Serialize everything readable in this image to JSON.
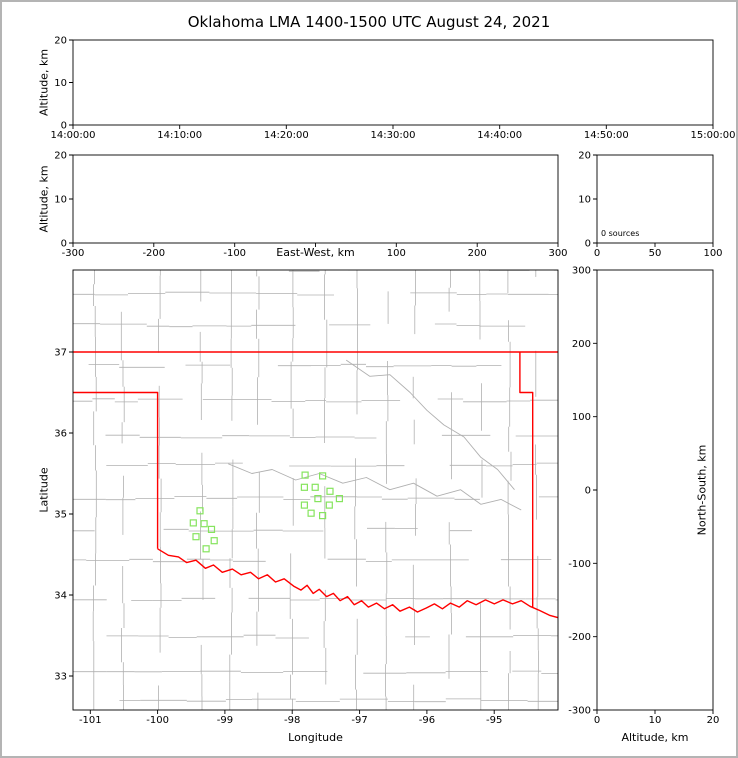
{
  "figure": {
    "title": "Oklahoma LMA 1400-1500 UTC August 24, 2021",
    "background": "#ffffff",
    "frame_color": "#b4b4b4"
  },
  "chart_data": [
    {
      "id": "time-height",
      "type": "scatter",
      "ylabel": "Altitude, km",
      "ylim": [
        0,
        20
      ],
      "yticks": [
        0,
        10,
        20
      ],
      "xticks": [
        "14:00:00",
        "14:10:00",
        "14:20:00",
        "14:30:00",
        "14:40:00",
        "14:50:00",
        "15:00:00"
      ],
      "points": []
    },
    {
      "id": "ew-height",
      "type": "scatter",
      "xlabel": "East-West, km",
      "ylabel": "Altitude, km",
      "xlim": [
        -300,
        300
      ],
      "ylim": [
        0,
        20
      ],
      "xticks": [
        -300,
        -200,
        -100,
        100,
        200,
        300
      ],
      "yticks": [
        0,
        10,
        20
      ],
      "points": []
    },
    {
      "id": "altitude-histogram",
      "type": "line",
      "annotation": "0 sources",
      "xlim": [
        0,
        100
      ],
      "ylim": [
        0,
        20
      ],
      "xticks": [
        0,
        50,
        100
      ],
      "yticks": [
        0,
        10,
        20
      ],
      "points": []
    },
    {
      "id": "plan-view-map",
      "type": "scatter",
      "xlabel": "Longitude",
      "ylabel": "Latitude",
      "xlim": [
        -101.26,
        -94.05
      ],
      "ylim": [
        32.58,
        38.01
      ],
      "xticks": [
        -101,
        -100,
        -99,
        -98,
        -97,
        -96,
        -95
      ],
      "yticks": [
        33,
        34,
        35,
        36,
        37
      ],
      "grid": false,
      "station_color": "#86e45e",
      "border_color": "#ff0000",
      "county_color": "#b0b0b0",
      "stations": [
        [
          -97.81,
          35.48
        ],
        [
          -97.55,
          35.47
        ],
        [
          -97.82,
          35.33
        ],
        [
          -97.66,
          35.33
        ],
        [
          -97.44,
          35.28
        ],
        [
          -97.62,
          35.19
        ],
        [
          -97.82,
          35.11
        ],
        [
          -97.45,
          35.11
        ],
        [
          -97.3,
          35.19
        ],
        [
          -97.72,
          35.01
        ],
        [
          -97.55,
          34.98
        ],
        [
          -99.37,
          35.04
        ],
        [
          -99.47,
          34.89
        ],
        [
          -99.31,
          34.88
        ],
        [
          -99.2,
          34.81
        ],
        [
          -99.43,
          34.72
        ],
        [
          -99.28,
          34.57
        ],
        [
          -99.16,
          34.67
        ]
      ],
      "state_border": [
        [
          [
            -101.26,
            37.0
          ],
          [
            -94.05,
            37.0
          ]
        ],
        [
          [
            -101.26,
            36.5
          ],
          [
            -100.0,
            36.5
          ],
          [
            -100.0,
            34.57
          ]
        ],
        [
          [
            -94.62,
            37.0
          ],
          [
            -94.62,
            36.5
          ],
          [
            -94.43,
            36.5
          ],
          [
            -94.43,
            33.84
          ]
        ],
        [
          [
            -100.0,
            34.57
          ],
          [
            -99.84,
            34.49
          ],
          [
            -99.69,
            34.47
          ],
          [
            -99.57,
            34.4
          ],
          [
            -99.43,
            34.43
          ],
          [
            -99.29,
            34.33
          ],
          [
            -99.17,
            34.37
          ],
          [
            -99.04,
            34.28
          ],
          [
            -98.89,
            34.32
          ],
          [
            -98.76,
            34.25
          ],
          [
            -98.62,
            34.28
          ],
          [
            -98.5,
            34.2
          ],
          [
            -98.37,
            34.25
          ],
          [
            -98.25,
            34.16
          ],
          [
            -98.12,
            34.2
          ],
          [
            -97.98,
            34.11
          ],
          [
            -97.87,
            34.06
          ],
          [
            -97.78,
            34.12
          ],
          [
            -97.69,
            34.02
          ],
          [
            -97.6,
            34.07
          ],
          [
            -97.49,
            33.98
          ],
          [
            -97.39,
            34.02
          ],
          [
            -97.29,
            33.93
          ],
          [
            -97.18,
            33.98
          ],
          [
            -97.08,
            33.88
          ],
          [
            -96.97,
            33.93
          ],
          [
            -96.87,
            33.85
          ],
          [
            -96.75,
            33.9
          ],
          [
            -96.63,
            33.83
          ],
          [
            -96.51,
            33.88
          ],
          [
            -96.4,
            33.8
          ],
          [
            -96.26,
            33.85
          ],
          [
            -96.14,
            33.79
          ],
          [
            -96.01,
            33.84
          ],
          [
            -95.89,
            33.89
          ],
          [
            -95.77,
            33.83
          ],
          [
            -95.65,
            33.9
          ],
          [
            -95.52,
            33.85
          ],
          [
            -95.4,
            33.93
          ],
          [
            -95.27,
            33.88
          ],
          [
            -95.13,
            33.94
          ],
          [
            -95.0,
            33.89
          ],
          [
            -94.87,
            33.94
          ],
          [
            -94.73,
            33.89
          ],
          [
            -94.6,
            33.93
          ],
          [
            -94.47,
            33.86
          ],
          [
            -94.33,
            33.81
          ],
          [
            -94.18,
            33.75
          ],
          [
            -94.05,
            33.72
          ]
        ]
      ],
      "rivers": [
        [
          [
            -98.95,
            35.62
          ],
          [
            -98.6,
            35.5
          ],
          [
            -98.3,
            35.55
          ],
          [
            -97.95,
            35.42
          ],
          [
            -97.6,
            35.5
          ],
          [
            -97.25,
            35.38
          ],
          [
            -96.9,
            35.45
          ],
          [
            -96.55,
            35.3
          ],
          [
            -96.2,
            35.38
          ],
          [
            -95.85,
            35.22
          ],
          [
            -95.5,
            35.3
          ],
          [
            -95.2,
            35.12
          ],
          [
            -94.9,
            35.18
          ],
          [
            -94.6,
            35.05
          ]
        ],
        [
          [
            -97.2,
            36.9
          ],
          [
            -96.85,
            36.7
          ],
          [
            -96.55,
            36.72
          ],
          [
            -96.25,
            36.5
          ],
          [
            -96.0,
            36.28
          ],
          [
            -95.75,
            36.1
          ],
          [
            -95.45,
            35.95
          ],
          [
            -95.2,
            35.7
          ],
          [
            -94.95,
            35.55
          ],
          [
            -94.7,
            35.3
          ]
        ]
      ]
    },
    {
      "id": "ns-height",
      "type": "scatter",
      "xlabel": "Altitude, km",
      "ylabel": "North-South, km",
      "xlim": [
        0,
        20
      ],
      "ylim": [
        -300,
        300
      ],
      "xticks": [
        0,
        10,
        20
      ],
      "yticks": [
        -300,
        -200,
        -100,
        0,
        100,
        200,
        300
      ],
      "points": []
    }
  ]
}
